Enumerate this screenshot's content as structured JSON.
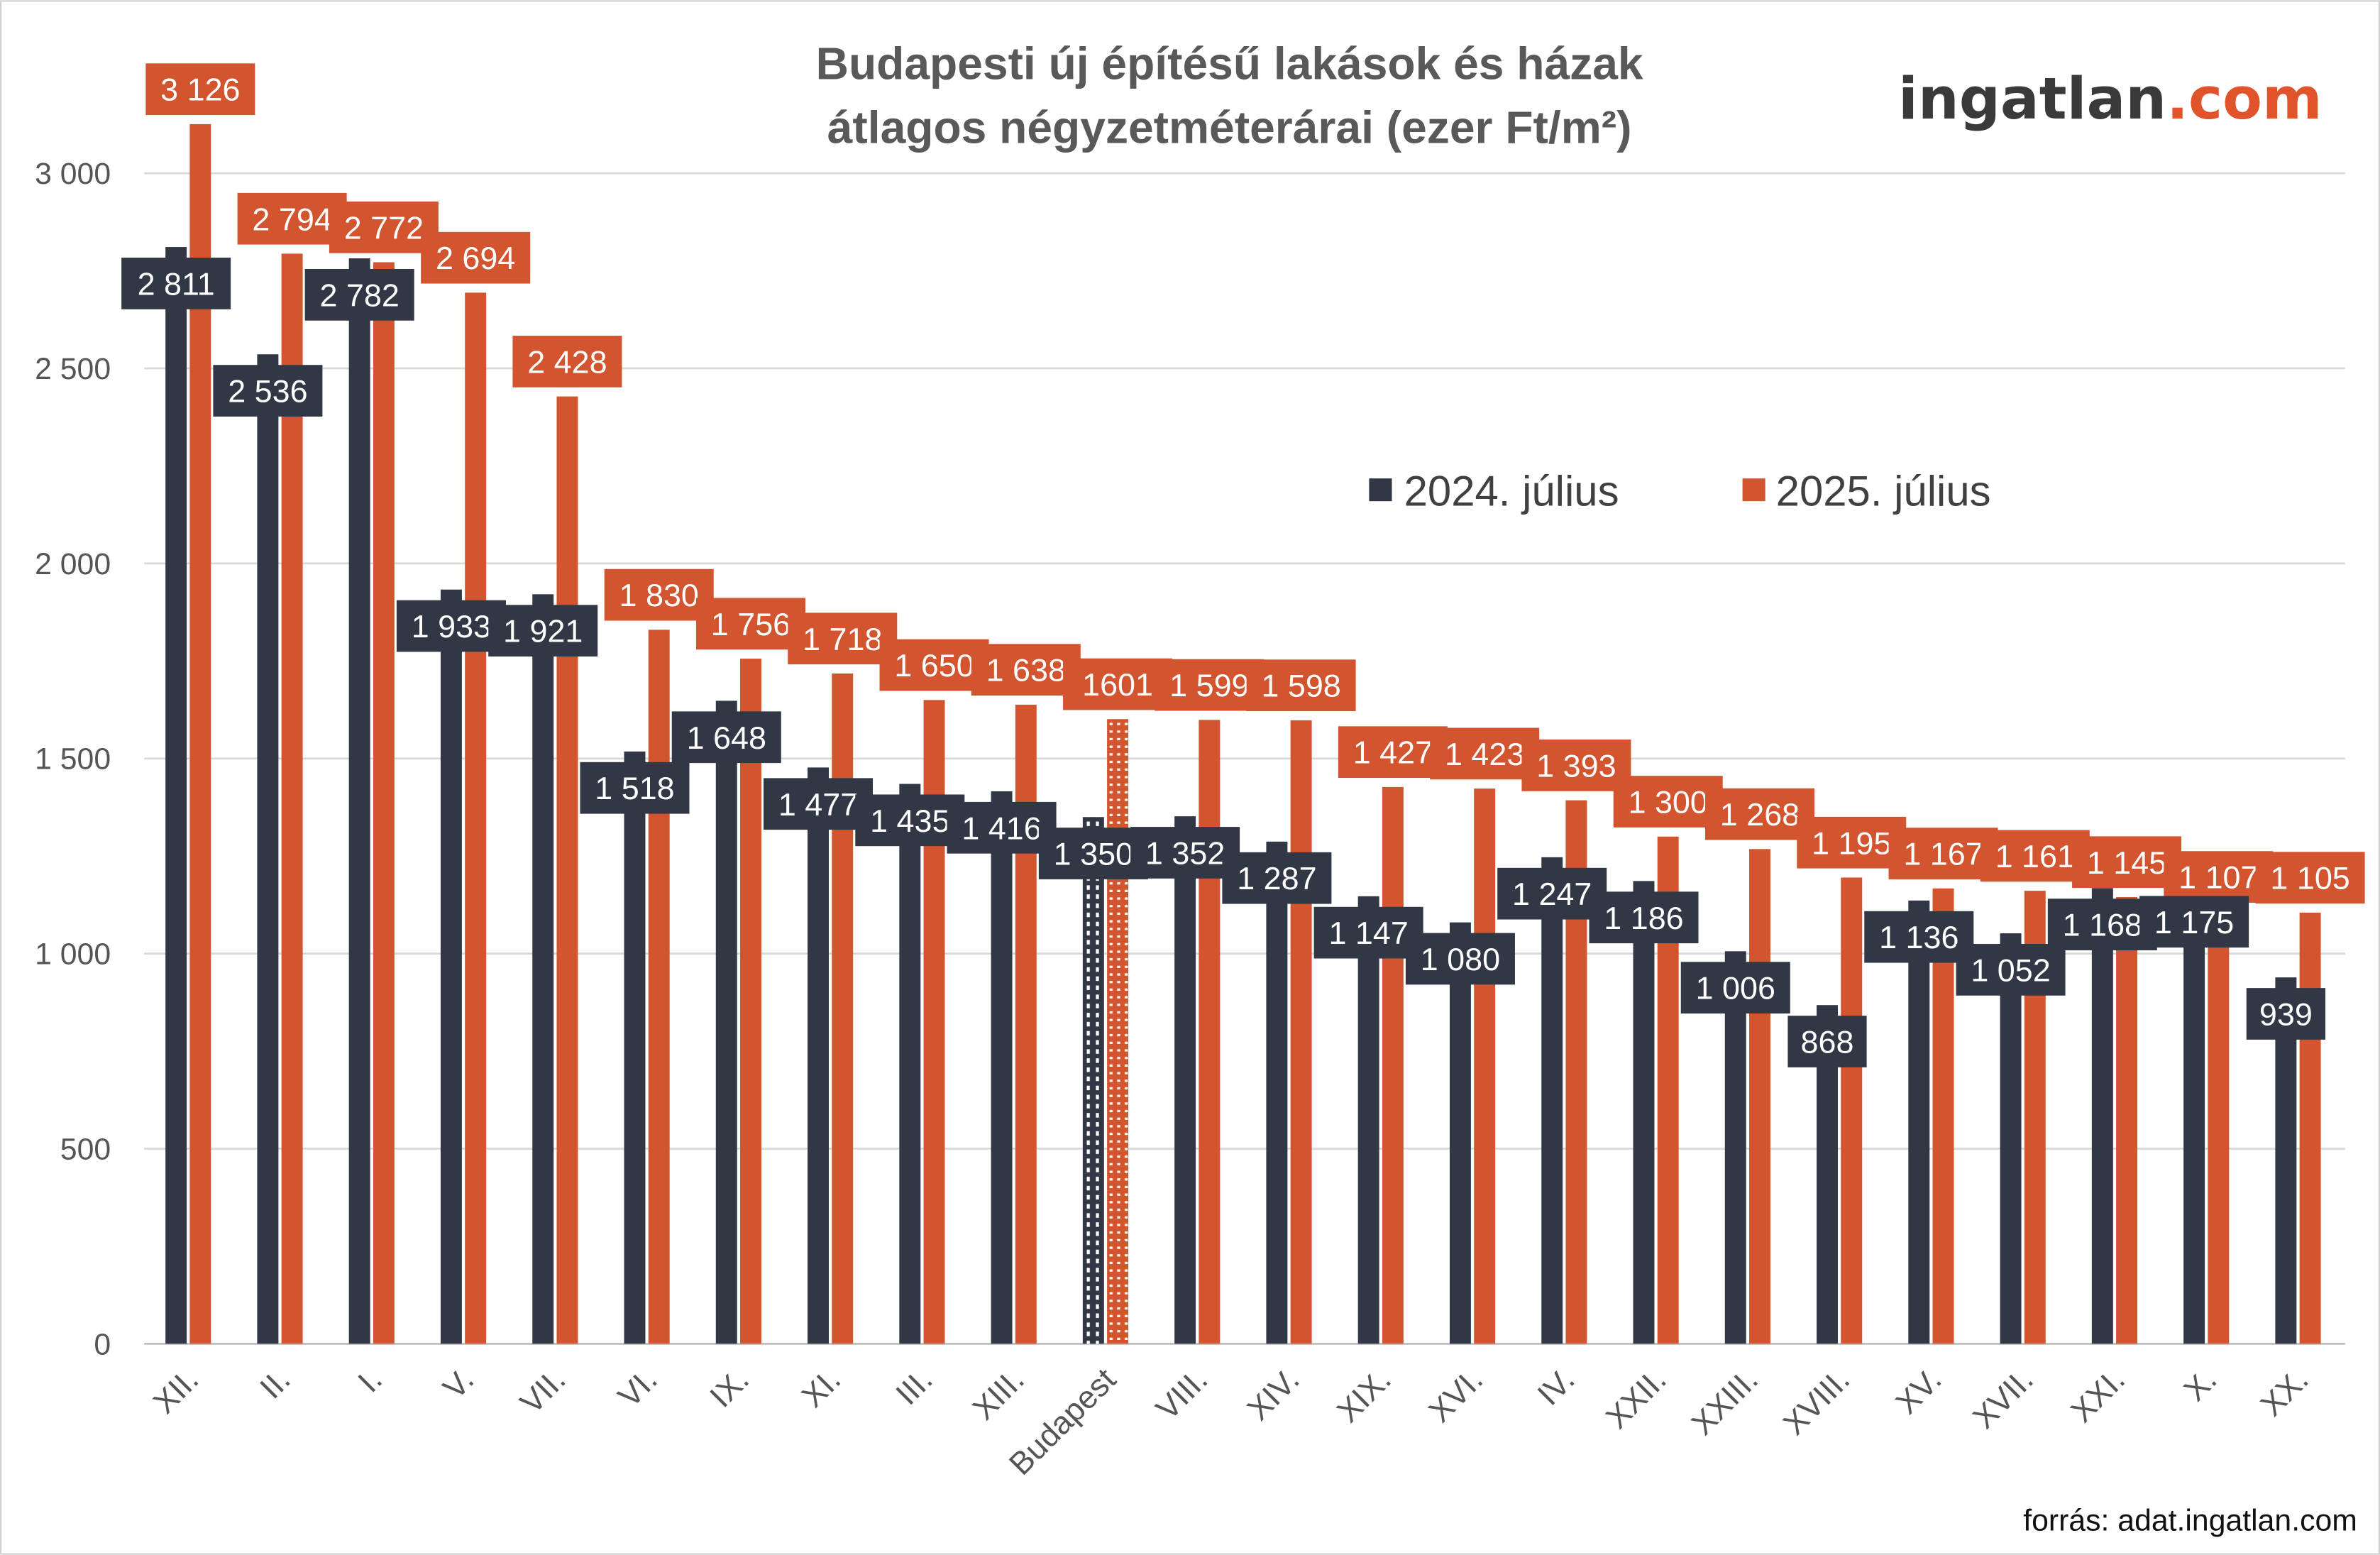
{
  "chart_data": {
    "type": "bar",
    "title": "Budapesti új építésű lakások és házak átlagos négyzetméterárai (ezer Ft/m²)",
    "title_lines": [
      "Budapesti új építésű lakások és házak",
      "átlagos négyzetméterárai (ezer Ft/m²)"
    ],
    "categories": [
      "XII.",
      "II.",
      "I.",
      "V.",
      "VII.",
      "VI.",
      "IX.",
      "XI.",
      "III.",
      "XIII.",
      "Budapest",
      "VIII.",
      "XIV.",
      "XIX.",
      "XVI.",
      "IV.",
      "XXII.",
      "XXIII.",
      "XVIII.",
      "XV.",
      "XVII.",
      "XXI.",
      "X.",
      "XX."
    ],
    "series": [
      {
        "name": "2024. július",
        "color": "#323745",
        "values": [
          2811,
          2536,
          2782,
          1933,
          1921,
          1518,
          1648,
          1477,
          1435,
          1416,
          1350,
          1352,
          1287,
          1147,
          1080,
          1247,
          1186,
          1006,
          868,
          1136,
          1052,
          1168,
          1175,
          939
        ],
        "labels": [
          "2 811",
          "2 536",
          "2 782",
          "1 933",
          "1 921",
          "1 518",
          "1 648",
          "1 477",
          "1 435",
          "1 416",
          "1 350",
          "1 352",
          "1 287",
          "1 147",
          "1 080",
          "1 247",
          "1 186",
          "1 006",
          "868",
          "1 136",
          "1 052",
          "1 168",
          "1 175",
          "939"
        ]
      },
      {
        "name": "2025. július",
        "color": "#d35530",
        "values": [
          3126,
          2794,
          2772,
          2694,
          2428,
          1830,
          1756,
          1718,
          1650,
          1638,
          1601,
          1599,
          1598,
          1427,
          1423,
          1393,
          1300,
          1268,
          1195,
          1167,
          1161,
          1145,
          1107,
          1105
        ],
        "labels": [
          "3 126",
          "2 794",
          "2 772",
          "2 694",
          "2 428",
          "1 830",
          "1 756",
          "1 718",
          "1 650",
          "1 638",
          "1601",
          "1 599",
          "1 598",
          "1 427",
          "1 423",
          "1 393",
          "1 300",
          "1 268",
          "1 195",
          "1 167",
          "1 161",
          "1 145",
          "1 107",
          "1 105"
        ]
      }
    ],
    "highlighted_category": "Budapest",
    "ylim": [
      0,
      3000
    ],
    "yticks": [
      0,
      500,
      1000,
      1500,
      2000,
      2500,
      3000
    ],
    "ytick_labels": [
      "0",
      "500",
      "1 000",
      "1 500",
      "2 000",
      "2 500",
      "3 000"
    ],
    "grid": true,
    "legend_placement": "top-right",
    "xlabel": "",
    "ylabel": ""
  },
  "logo": {
    "part1": "ingatlan",
    "part2": ".com",
    "color1": "#3a3a3a",
    "color2": "#e0532b"
  },
  "source": "forrás: adat.ingatlan.com"
}
